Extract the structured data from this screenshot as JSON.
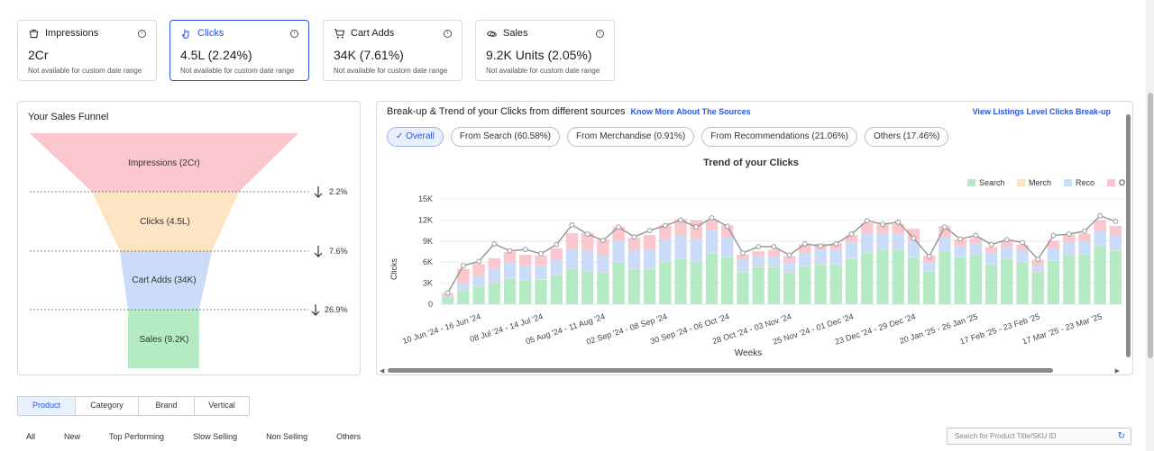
{
  "metrics": [
    {
      "label": "Impressions",
      "value": "2Cr",
      "note": "Not available for custom date range",
      "icon": "impressions-icon"
    },
    {
      "label": "Clicks",
      "value": "4.5L (2.24%)",
      "note": "Not available for custom date range",
      "icon": "clicks-icon"
    },
    {
      "label": "Cart Adds",
      "value": "34K (7.61%)",
      "note": "Not available for custom date range",
      "icon": "cart-icon"
    },
    {
      "label": "Sales",
      "value": "9.2K Units (2.05%)",
      "note": "Not available for custom date range",
      "icon": "sales-icon"
    }
  ],
  "funnel": {
    "title": "Your Sales Funnel",
    "stages": [
      {
        "label": "Impressions (2Cr)",
        "color": "#f9c7cd"
      },
      {
        "label": "Clicks (4.5L)",
        "color": "#fde4c2"
      },
      {
        "label": "Cart Adds (34K)",
        "color": "#cbdcf9"
      },
      {
        "label": "Sales (9.2K)",
        "color": "#b5ebc4"
      }
    ],
    "conversions": [
      "2.2%",
      "7.6%",
      "26.9%"
    ]
  },
  "trend": {
    "title": "Break-up & Trend of your Clicks from different sources",
    "know_more": "Know More About The Sources",
    "view_listings": "View Listings Level Clicks Break-up",
    "chips": [
      "✓ Overall",
      "From Search (60.58%)",
      "From Merchandise (0.91%)",
      "From Recommendations (21.06%)",
      "Others (17.46%)"
    ]
  },
  "chart_data": {
    "type": "bar",
    "title": "Trend of your Clicks",
    "xlabel": "Weeks",
    "ylabel": "Clicks",
    "ylim": [
      0,
      15000
    ],
    "yticks": [
      "0",
      "3K",
      "6K",
      "9K",
      "12K",
      "15K"
    ],
    "tick_labels": [
      "10 Jun '24 - 16 Jun '24",
      "08 Jul '24 - 14 Jul '24",
      "05 Aug '24 - 11 Aug '24",
      "02 Sep '24 - 08 Sep '24",
      "30 Sep '24 - 06 Oct '24",
      "28 Oct '24 - 03 Nov '24",
      "25 Nov '24 - 01 Dec '24",
      "23 Dec '24 - 29 Dec '24",
      "20 Jan '25 - 26 Jan '25",
      "17 Feb '25 - 23 Feb '25",
      "17 Mar '25 - 23 Mar '25"
    ],
    "legend": [
      "Search",
      "Merch",
      "Reco",
      "Others"
    ],
    "colors": {
      "Search": "#b5ebc4",
      "Merch": "#fde4c2",
      "Reco": "#cbdcf9",
      "Others": "#f9c7cd",
      "line": "#999999"
    },
    "series": [
      {
        "name": "Search",
        "values": [
          1000,
          2000,
          2500,
          3000,
          3700,
          3400,
          3500,
          4200,
          5000,
          4700,
          4500,
          6000,
          5000,
          5000,
          6000,
          6500,
          6000,
          7300,
          6700,
          4600,
          5300,
          5300,
          4500,
          5400,
          5600,
          5700,
          6500,
          7400,
          7700,
          7800,
          6700,
          4700,
          7500,
          6700,
          7000,
          5700,
          6500,
          6000,
          4500,
          6200,
          7000,
          7100,
          8200,
          7600
        ]
      },
      {
        "name": "Merch",
        "values": [
          0,
          50,
          50,
          50,
          50,
          50,
          50,
          50,
          50,
          50,
          50,
          50,
          50,
          50,
          50,
          50,
          50,
          50,
          50,
          50,
          50,
          50,
          50,
          50,
          50,
          50,
          50,
          50,
          50,
          50,
          50,
          50,
          50,
          50,
          50,
          50,
          50,
          50,
          50,
          50,
          50,
          50,
          50,
          50
        ]
      },
      {
        "name": "Reco",
        "values": [
          200,
          1000,
          1500,
          2000,
          2200,
          2100,
          2000,
          2100,
          2800,
          2900,
          2500,
          3000,
          2600,
          2800,
          3200,
          3200,
          3300,
          3200,
          2800,
          1700,
          1500,
          1500,
          1400,
          1900,
          2100,
          2000,
          2200,
          2600,
          2400,
          2200,
          2300,
          1200,
          2000,
          1500,
          1600,
          1600,
          1600,
          1700,
          1000,
          1800,
          1800,
          1800,
          2200,
          2200
        ]
      },
      {
        "name": "Others",
        "values": [
          400,
          2000,
          1700,
          1500,
          1500,
          1500,
          1400,
          1600,
          2300,
          2500,
          2200,
          2000,
          1800,
          2000,
          2000,
          2400,
          2600,
          1400,
          1700,
          700,
          700,
          900,
          900,
          1200,
          900,
          900,
          1100,
          1500,
          1200,
          1400,
          1700,
          1000,
          1600,
          1000,
          800,
          800,
          800,
          700,
          800,
          1000,
          1100,
          1100,
          1500,
          1300
        ]
      }
    ],
    "total_line": [
      1600,
      5500,
      6100,
      8600,
      7600,
      7800,
      7200,
      8500,
      11300,
      10000,
      9100,
      11000,
      9600,
      10500,
      11200,
      12000,
      11000,
      12300,
      11100,
      7300,
      8200,
      8200,
      7000,
      8600,
      8300,
      8600,
      10000,
      11900,
      11400,
      11700,
      9400,
      6800,
      11000,
      9300,
      9800,
      8500,
      9200,
      8800,
      6400,
      9800,
      10000,
      10400,
      12600,
      11800
    ]
  },
  "segments": [
    "Product",
    "Category",
    "Brand",
    "Vertical"
  ],
  "filters": [
    "All",
    "New",
    "Top Performing",
    "Slow Selling",
    "Non Selling",
    "Others"
  ],
  "search": {
    "placeholder": "Search for Product Title/SKU ID"
  }
}
